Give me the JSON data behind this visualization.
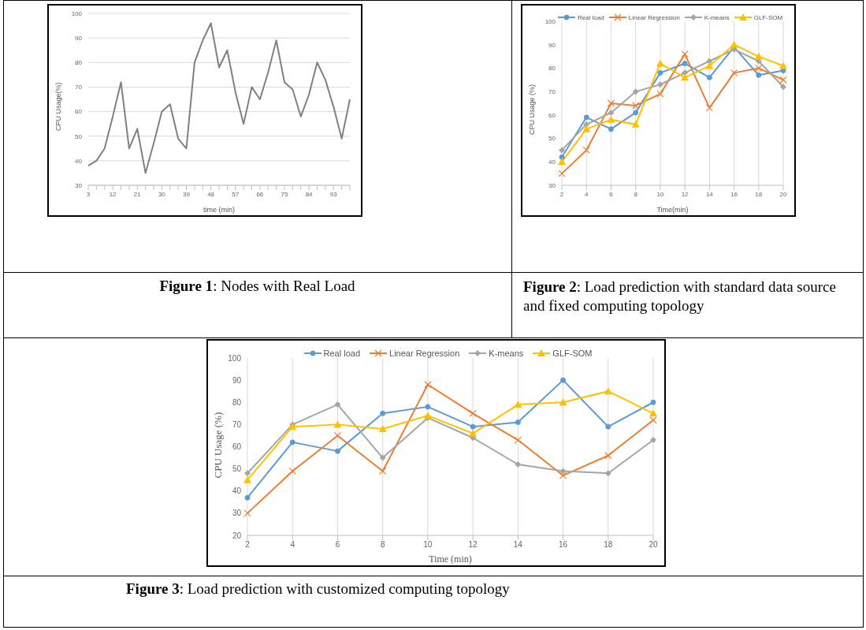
{
  "chart_data": [
    {
      "type": "line",
      "xlabel": "time (min)",
      "ylabel": "CPU Usage(%)",
      "categories": [
        "3",
        null,
        null,
        "12",
        null,
        null,
        "21",
        null,
        null,
        "30",
        null,
        null,
        "39",
        null,
        null,
        "48",
        null,
        null,
        "57",
        null,
        null,
        "66",
        null,
        null,
        "75",
        null,
        null,
        "84",
        null,
        null,
        "93",
        null,
        null
      ],
      "series": [
        {
          "color": "#808080",
          "values": [
            38,
            40,
            45,
            58,
            72,
            45,
            53,
            35,
            47,
            60,
            63,
            49,
            45,
            80,
            89,
            96,
            78,
            85,
            68,
            55,
            70,
            65,
            76,
            89,
            72,
            69,
            58,
            67,
            80,
            73,
            62,
            49,
            65
          ]
        }
      ],
      "ylim": [
        30,
        100
      ],
      "yticks": [
        30,
        40,
        50,
        60,
        70,
        80,
        90,
        100
      ],
      "grid": "y",
      "marker": "none",
      "legend": false,
      "annotations": [
        "Figure 1: Nodes with Real Load"
      ]
    },
    {
      "type": "line",
      "xlabel": "Time(min)",
      "ylabel": "CPU Usage (%)",
      "categories": [
        "2",
        "4",
        "6",
        "8",
        "10",
        "12",
        "14",
        "16",
        "18",
        "20"
      ],
      "series": [
        {
          "name": "Real load",
          "color": "#5b9bd5",
          "marker": "circle",
          "values": [
            42,
            59,
            54,
            61,
            78,
            82,
            76,
            89,
            77,
            79
          ]
        },
        {
          "name": "Linear Regression",
          "color": "#ed7d31",
          "marker": "cross",
          "values": [
            35,
            45,
            65,
            64,
            69,
            86,
            63,
            78,
            80,
            75
          ]
        },
        {
          "name": "K-means",
          "color": "#a5a5a5",
          "marker": "diamond",
          "values": [
            45,
            56,
            61,
            70,
            73,
            78,
            83,
            88,
            83,
            72
          ]
        },
        {
          "name": "GLF-SOM",
          "color": "#ffc000",
          "marker": "triangle",
          "values": [
            40,
            54,
            58,
            56,
            82,
            76,
            81,
            90,
            85,
            81
          ]
        }
      ],
      "ylim": [
        30,
        100
      ],
      "yticks": [
        30,
        40,
        50,
        60,
        70,
        80,
        90,
        100
      ],
      "grid": "x",
      "legend": "top",
      "annotations": [
        "Figure 2: Load prediction with standard data source and fixed computing topology"
      ]
    },
    {
      "type": "line",
      "xlabel": "Time (min)",
      "ylabel": "CPU Usage (%)",
      "categories": [
        "2",
        "4",
        "6",
        "8",
        "10",
        "12",
        "14",
        "16",
        "18",
        "20"
      ],
      "series": [
        {
          "name": "Real load",
          "color": "#5b9bd5",
          "marker": "circle",
          "values": [
            37,
            62,
            58,
            75,
            78,
            69,
            71,
            90,
            69,
            80
          ]
        },
        {
          "name": "Linear Regression",
          "color": "#ed7d31",
          "marker": "cross",
          "values": [
            30,
            49,
            65,
            49,
            88,
            75,
            63,
            47,
            56,
            72
          ]
        },
        {
          "name": "K-means",
          "color": "#a5a5a5",
          "marker": "diamond",
          "values": [
            48,
            70,
            79,
            55,
            73,
            64,
            52,
            49,
            48,
            63
          ]
        },
        {
          "name": "GLF-SOM",
          "color": "#ffc000",
          "marker": "triangle",
          "values": [
            45,
            69,
            70,
            68,
            74,
            66,
            79,
            80,
            85,
            75
          ]
        }
      ],
      "ylim": [
        20,
        100
      ],
      "yticks": [
        20,
        30,
        40,
        50,
        60,
        70,
        80,
        90,
        100
      ],
      "grid": "x",
      "legend": "top",
      "annotations": [
        "Figure 3: Load prediction with customized computing topology"
      ]
    }
  ]
}
